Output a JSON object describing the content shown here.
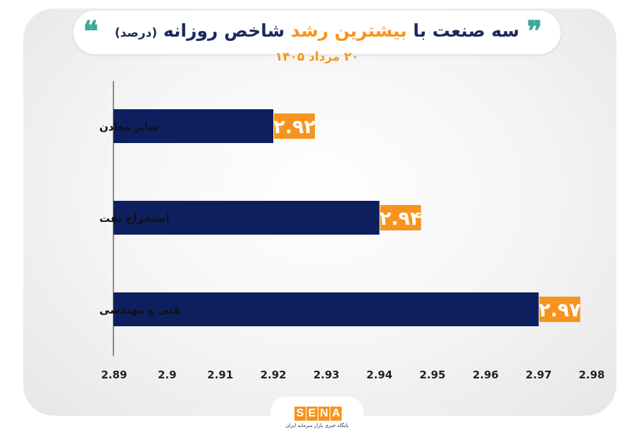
{
  "title": {
    "part1": "سه صنعت با",
    "accent": "بیشترین رشد",
    "part2": "شاخص روزانه",
    "note": "(درصد)"
  },
  "subtitle": "۲۰ مرداد ۱۴۰۵",
  "icons": {
    "quote_open": "quote-open-icon",
    "quote_close": "quote-close-icon"
  },
  "colors": {
    "bar": "#0d1f5e",
    "label_bg": "#f7941d",
    "title": "#1b2a5c",
    "accent": "#f7941d",
    "quote": "#3aaa9a"
  },
  "chart_data": {
    "type": "bar",
    "orientation": "horizontal",
    "categories": [
      "سایر معادن",
      "استخراج نفت",
      "فنی و مهندسی"
    ],
    "values": [
      2.92,
      2.94,
      2.97
    ],
    "value_labels": [
      "۲.۹۲",
      "۲.۹۴",
      "۲.۹۷"
    ],
    "xlim": [
      2.89,
      2.98
    ],
    "ticks": [
      "2.89",
      "2.9",
      "2.91",
      "2.92",
      "2.93",
      "2.94",
      "2.95",
      "2.96",
      "2.97",
      "2.98"
    ],
    "grid": false
  },
  "logo": {
    "letters": [
      "S",
      "E",
      "N",
      "A"
    ],
    "tagline": "پایگاه خبری بازار سرمایه ایران"
  }
}
